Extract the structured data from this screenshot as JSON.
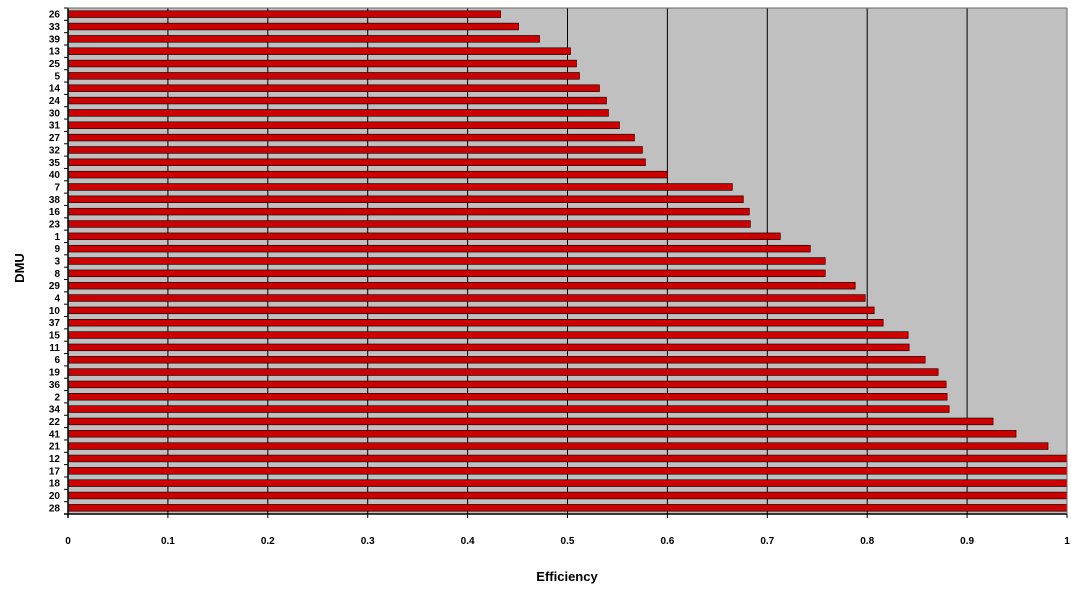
{
  "chart_data": {
    "type": "bar",
    "orientation": "horizontal",
    "xlabel": "Efficiency",
    "ylabel": "DMU",
    "xlim": [
      0,
      1
    ],
    "xticks": [
      "0",
      "0.1",
      "0.2",
      "0.3",
      "0.4",
      "0.5",
      "0.6",
      "0.7",
      "0.8",
      "0.9",
      "1"
    ],
    "grid": "vertical",
    "plot_background": "#c0c0c0",
    "bar_color": "#cc0000",
    "categories": [
      "26",
      "33",
      "39",
      "13",
      "25",
      "5",
      "14",
      "24",
      "30",
      "31",
      "27",
      "32",
      "35",
      "40",
      "7",
      "38",
      "16",
      "23",
      "1",
      "9",
      "3",
      "8",
      "29",
      "4",
      "10",
      "37",
      "15",
      "11",
      "6",
      "19",
      "36",
      "2",
      "34",
      "22",
      "41",
      "21",
      "12",
      "17",
      "18",
      "20",
      "28"
    ],
    "values": [
      0.433,
      0.451,
      0.472,
      0.503,
      0.509,
      0.512,
      0.532,
      0.539,
      0.541,
      0.552,
      0.567,
      0.575,
      0.578,
      0.6,
      0.665,
      0.676,
      0.682,
      0.683,
      0.713,
      0.743,
      0.758,
      0.758,
      0.788,
      0.798,
      0.807,
      0.816,
      0.841,
      0.842,
      0.858,
      0.871,
      0.879,
      0.88,
      0.882,
      0.926,
      0.949,
      0.981,
      1.0,
      1.0,
      1.0,
      1.0,
      1.0
    ]
  }
}
